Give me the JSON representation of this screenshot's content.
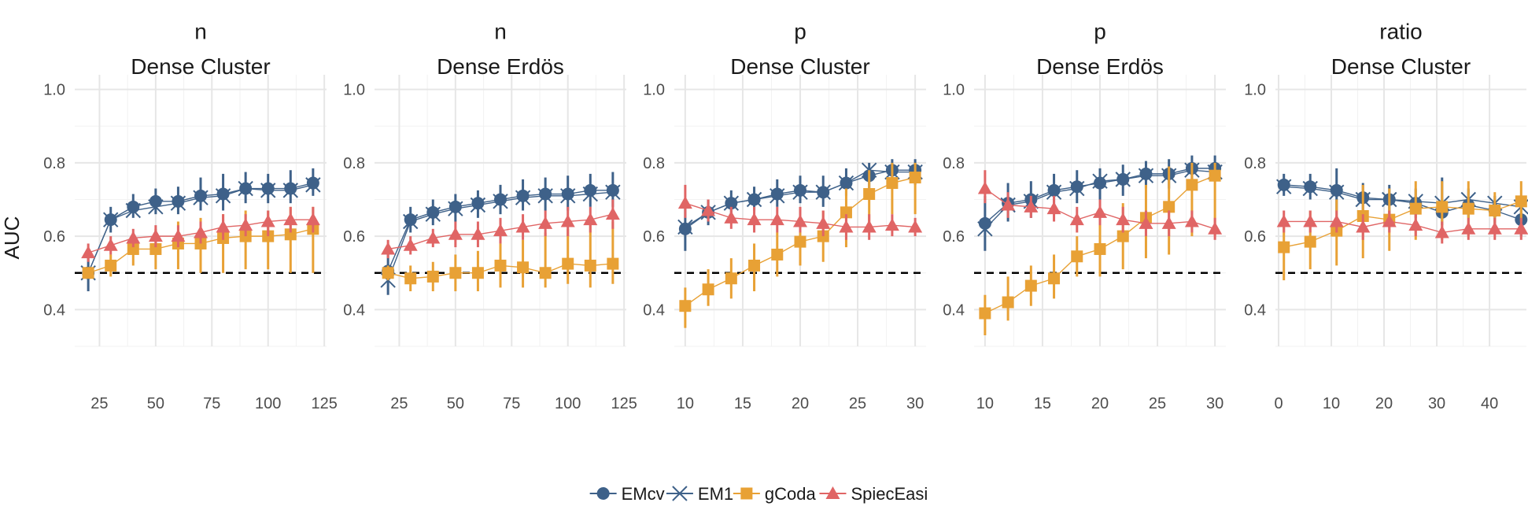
{
  "chart_data": {
    "type": "line",
    "ylabel": "AUC",
    "ylim": [
      0.3,
      1.04
    ],
    "yticks": [
      0.4,
      0.6,
      0.8,
      1.0
    ],
    "yticklabels": [
      "0.4",
      "0.6",
      "0.8",
      "1.0"
    ],
    "reference_line": 0.5,
    "colors": {
      "EMcv": "#3e6189",
      "EM1": "#3e6189",
      "gCoda": "#e8a135",
      "SpiecEasi": "#e06565"
    },
    "legend": {
      "position": "bottom",
      "entries": [
        {
          "name": "EMcv",
          "marker": "circle"
        },
        {
          "name": "EM1",
          "marker": "cross"
        },
        {
          "name": "gCoda",
          "marker": "square"
        },
        {
          "name": "SpiecEasi",
          "marker": "triangle"
        }
      ]
    },
    "panels": [
      {
        "strip_top": "n",
        "strip_bottom": "Dense Cluster",
        "xlim": [
          14,
          126
        ],
        "xticks": [
          25,
          50,
          75,
          100,
          125
        ],
        "xticklabels": [
          "25",
          "50",
          "75",
          "100",
          "125"
        ],
        "x": [
          20,
          30,
          40,
          50,
          60,
          70,
          80,
          90,
          100,
          110,
          120
        ],
        "series": [
          {
            "name": "EMcv",
            "values": [
              0.5,
              0.645,
              0.68,
              0.695,
              0.695,
              0.71,
              0.715,
              0.73,
              0.73,
              0.73,
              0.745
            ],
            "lower": [
              0.45,
              0.61,
              0.65,
              0.66,
              0.66,
              0.67,
              0.67,
              0.69,
              0.69,
              0.69,
              0.71
            ],
            "upper": [
              0.55,
              0.68,
              0.715,
              0.73,
              0.735,
              0.76,
              0.77,
              0.775,
              0.77,
              0.78,
              0.785
            ]
          },
          {
            "name": "EM1",
            "values": [
              0.5,
              0.645,
              0.67,
              0.68,
              0.69,
              0.705,
              0.71,
              0.73,
              0.725,
              0.725,
              0.74
            ]
          },
          {
            "name": "gCoda",
            "values": [
              0.5,
              0.52,
              0.565,
              0.565,
              0.58,
              0.58,
              0.595,
              0.6,
              0.6,
              0.605,
              0.62
            ],
            "lower": [
              0.49,
              0.49,
              0.52,
              0.51,
              0.51,
              0.5,
              0.5,
              0.51,
              0.51,
              0.5,
              0.5
            ],
            "upper": [
              0.51,
              0.55,
              0.61,
              0.62,
              0.64,
              0.65,
              0.66,
              0.67,
              0.67,
              0.68,
              0.68
            ]
          },
          {
            "name": "SpiecEasi",
            "values": [
              0.555,
              0.575,
              0.595,
              0.6,
              0.6,
              0.61,
              0.625,
              0.63,
              0.64,
              0.645,
              0.645
            ],
            "lower": [
              0.53,
              0.55,
              0.57,
              0.57,
              0.57,
              0.58,
              0.59,
              0.6,
              0.6,
              0.61,
              0.61
            ],
            "upper": [
              0.58,
              0.6,
              0.62,
              0.63,
              0.63,
              0.64,
              0.66,
              0.66,
              0.67,
              0.68,
              0.68
            ]
          }
        ]
      },
      {
        "strip_top": "n",
        "strip_bottom": "Dense Erdös",
        "xlim": [
          14,
          126
        ],
        "xticks": [
          25,
          50,
          75,
          100,
          125
        ],
        "xticklabels": [
          "25",
          "50",
          "75",
          "100",
          "125"
        ],
        "x": [
          20,
          30,
          40,
          50,
          60,
          70,
          80,
          90,
          100,
          110,
          120
        ],
        "series": [
          {
            "name": "EMcv",
            "values": [
              0.505,
              0.645,
              0.665,
              0.68,
              0.69,
              0.7,
              0.71,
              0.715,
              0.715,
              0.725,
              0.725
            ],
            "lower": [
              0.44,
              0.61,
              0.63,
              0.64,
              0.65,
              0.66,
              0.67,
              0.67,
              0.67,
              0.68,
              0.68
            ],
            "upper": [
              0.57,
              0.68,
              0.7,
              0.715,
              0.725,
              0.74,
              0.755,
              0.76,
              0.765,
              0.77,
              0.775
            ]
          },
          {
            "name": "EM1",
            "values": [
              0.48,
              0.64,
              0.66,
              0.675,
              0.685,
              0.695,
              0.705,
              0.71,
              0.71,
              0.715,
              0.72
            ]
          },
          {
            "name": "gCoda",
            "values": [
              0.5,
              0.485,
              0.49,
              0.5,
              0.5,
              0.52,
              0.515,
              0.5,
              0.525,
              0.52,
              0.525
            ],
            "lower": [
              0.48,
              0.45,
              0.45,
              0.45,
              0.45,
              0.46,
              0.46,
              0.46,
              0.47,
              0.46,
              0.47
            ],
            "upper": [
              0.52,
              0.52,
              0.53,
              0.55,
              0.56,
              0.58,
              0.59,
              0.61,
              0.62,
              0.63,
              0.64
            ]
          },
          {
            "name": "SpiecEasi",
            "values": [
              0.565,
              0.575,
              0.595,
              0.605,
              0.605,
              0.615,
              0.625,
              0.635,
              0.64,
              0.645,
              0.66
            ],
            "lower": [
              0.54,
              0.55,
              0.57,
              0.57,
              0.57,
              0.58,
              0.59,
              0.6,
              0.6,
              0.61,
              0.62
            ],
            "upper": [
              0.59,
              0.6,
              0.62,
              0.64,
              0.64,
              0.65,
              0.66,
              0.67,
              0.68,
              0.68,
              0.7
            ]
          }
        ]
      },
      {
        "strip_top": "p",
        "strip_bottom": "Dense Cluster",
        "xlim": [
          9.05,
          30.95
        ],
        "xticks": [
          10,
          15,
          20,
          25,
          30
        ],
        "xticklabels": [
          "10",
          "15",
          "20",
          "25",
          "30"
        ],
        "x": [
          10,
          12,
          14,
          16,
          18,
          20,
          22,
          24,
          26,
          28,
          30
        ],
        "series": [
          {
            "name": "EMcv",
            "values": [
              0.62,
              0.665,
              0.69,
              0.7,
              0.715,
              0.725,
              0.72,
              0.745,
              0.765,
              0.78,
              0.78
            ],
            "lower": [
              0.56,
              0.63,
              0.66,
              0.67,
              0.68,
              0.69,
              0.68,
              0.71,
              0.72,
              0.74,
              0.74
            ],
            "upper": [
              0.68,
              0.7,
              0.725,
              0.735,
              0.755,
              0.765,
              0.765,
              0.785,
              0.8,
              0.81,
              0.81
            ]
          },
          {
            "name": "EM1",
            "values": [
              0.625,
              0.665,
              0.69,
              0.7,
              0.71,
              0.72,
              0.72,
              0.745,
              0.78,
              0.775,
              0.775
            ]
          },
          {
            "name": "gCoda",
            "values": [
              0.41,
              0.455,
              0.485,
              0.52,
              0.55,
              0.585,
              0.6,
              0.665,
              0.715,
              0.745,
              0.76
            ],
            "lower": [
              0.35,
              0.41,
              0.43,
              0.45,
              0.49,
              0.52,
              0.53,
              0.57,
              0.62,
              0.66,
              0.66
            ],
            "upper": [
              0.46,
              0.51,
              0.54,
              0.58,
              0.61,
              0.65,
              0.67,
              0.73,
              0.78,
              0.8,
              0.8
            ]
          },
          {
            "name": "SpiecEasi",
            "values": [
              0.69,
              0.67,
              0.65,
              0.645,
              0.645,
              0.64,
              0.635,
              0.625,
              0.625,
              0.63,
              0.625
            ],
            "lower": [
              0.65,
              0.64,
              0.62,
              0.61,
              0.61,
              0.61,
              0.6,
              0.59,
              0.59,
              0.6,
              0.6
            ],
            "upper": [
              0.74,
              0.7,
              0.68,
              0.68,
              0.68,
              0.68,
              0.67,
              0.66,
              0.66,
              0.66,
              0.65
            ]
          }
        ]
      },
      {
        "strip_top": "p",
        "strip_bottom": "Dense Erdös",
        "xlim": [
          9.05,
          30.95
        ],
        "xticks": [
          10,
          15,
          20,
          25,
          30
        ],
        "xticklabels": [
          "10",
          "15",
          "20",
          "25",
          "30"
        ],
        "x": [
          10,
          12,
          14,
          16,
          18,
          20,
          22,
          24,
          26,
          28,
          30
        ],
        "series": [
          {
            "name": "EMcv",
            "values": [
              0.635,
              0.69,
              0.7,
              0.725,
              0.735,
              0.745,
              0.755,
              0.77,
              0.77,
              0.785,
              0.785
            ],
            "lower": [
              0.56,
              0.64,
              0.65,
              0.68,
              0.69,
              0.7,
              0.71,
              0.73,
              0.73,
              0.75,
              0.75
            ],
            "upper": [
              0.71,
              0.745,
              0.75,
              0.77,
              0.78,
              0.785,
              0.795,
              0.805,
              0.81,
              0.82,
              0.82
            ]
          },
          {
            "name": "EM1",
            "values": [
              0.62,
              0.685,
              0.695,
              0.72,
              0.73,
              0.75,
              0.755,
              0.765,
              0.765,
              0.78,
              0.775
            ]
          },
          {
            "name": "gCoda",
            "values": [
              0.39,
              0.42,
              0.465,
              0.485,
              0.545,
              0.565,
              0.6,
              0.65,
              0.68,
              0.74,
              0.765
            ],
            "lower": [
              0.33,
              0.37,
              0.41,
              0.43,
              0.49,
              0.49,
              0.51,
              0.54,
              0.55,
              0.6,
              0.6
            ],
            "upper": [
              0.44,
              0.49,
              0.52,
              0.55,
              0.6,
              0.64,
              0.69,
              0.74,
              0.79,
              0.8,
              0.8
            ]
          },
          {
            "name": "SpiecEasi",
            "values": [
              0.73,
              0.685,
              0.68,
              0.675,
              0.645,
              0.665,
              0.645,
              0.635,
              0.635,
              0.64,
              0.62
            ],
            "lower": [
              0.69,
              0.65,
              0.65,
              0.64,
              0.61,
              0.63,
              0.61,
              0.6,
              0.6,
              0.61,
              0.59
            ],
            "upper": [
              0.78,
              0.72,
              0.71,
              0.71,
              0.68,
              0.7,
              0.68,
              0.67,
              0.67,
              0.67,
              0.65
            ]
          }
        ]
      },
      {
        "strip_top": "ratio",
        "strip_bottom": "Dense Cluster",
        "xlim": [
          -0.6,
          47
        ],
        "xticks": [
          0,
          10,
          20,
          30,
          40
        ],
        "xticklabels": [
          "0",
          "10",
          "20",
          "30",
          "40"
        ],
        "x": [
          1,
          6,
          11,
          16,
          21,
          26,
          31,
          36,
          41,
          46
        ],
        "series": [
          {
            "name": "EMcv",
            "values": [
              0.74,
              0.735,
              0.725,
              0.705,
              0.7,
              0.69,
              0.665,
              0.685,
              0.67,
              0.645
            ],
            "lower": [
              0.71,
              0.7,
              0.67,
              0.67,
              0.66,
              0.65,
              0.63,
              0.65,
              0.63,
              0.6
            ],
            "upper": [
              0.77,
              0.77,
              0.785,
              0.745,
              0.74,
              0.73,
              0.76,
              0.73,
              0.71,
              0.7
            ]
          },
          {
            "name": "EM1",
            "values": [
              0.735,
              0.73,
              0.72,
              0.7,
              0.7,
              0.695,
              0.69,
              0.7,
              0.69,
              0.68
            ]
          },
          {
            "name": "gCoda",
            "values": [
              0.57,
              0.585,
              0.615,
              0.655,
              0.645,
              0.675,
              0.68,
              0.675,
              0.67,
              0.695
            ],
            "lower": [
              0.48,
              0.51,
              0.52,
              0.54,
              0.56,
              0.59,
              0.59,
              0.6,
              0.62,
              0.64
            ],
            "upper": [
              0.65,
              0.67,
              0.7,
              0.74,
              0.73,
              0.75,
              0.75,
              0.75,
              0.72,
              0.75
            ]
          },
          {
            "name": "SpiecEasi",
            "values": [
              0.64,
              0.64,
              0.64,
              0.625,
              0.64,
              0.63,
              0.61,
              0.62,
              0.62,
              0.62
            ],
            "lower": [
              0.61,
              0.61,
              0.61,
              0.59,
              0.61,
              0.6,
              0.58,
              0.59,
              0.59,
              0.59
            ],
            "upper": [
              0.67,
              0.67,
              0.67,
              0.66,
              0.67,
              0.66,
              0.64,
              0.65,
              0.65,
              0.65
            ]
          }
        ]
      }
    ]
  }
}
